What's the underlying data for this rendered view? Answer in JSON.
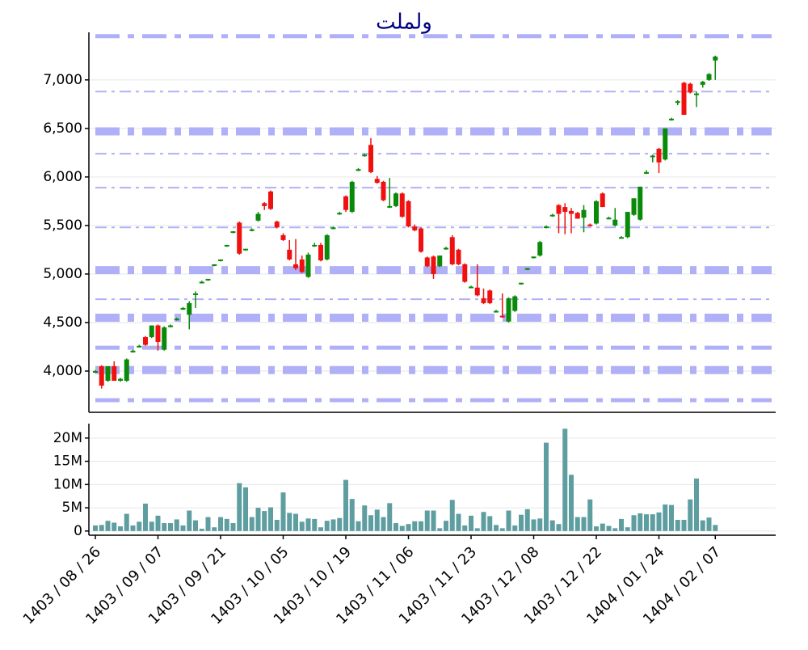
{
  "chart_data": {
    "type": "candlestick",
    "title": "ولملت",
    "categories": [
      "1403 / 08 / 26",
      null,
      null,
      null,
      null,
      null,
      null,
      null,
      null,
      null,
      "1403 / 09 / 07",
      null,
      null,
      null,
      null,
      null,
      null,
      null,
      null,
      null,
      "1403 / 09 / 21",
      null,
      null,
      null,
      null,
      null,
      null,
      null,
      null,
      null,
      "1403 / 10 / 05",
      null,
      null,
      null,
      null,
      null,
      null,
      null,
      null,
      null,
      "1403 / 10 / 19",
      null,
      null,
      null,
      null,
      null,
      null,
      null,
      null,
      null,
      "1403 / 11 / 06",
      null,
      null,
      null,
      null,
      null,
      null,
      null,
      null,
      null,
      "1403 / 11 / 23",
      null,
      null,
      null,
      null,
      null,
      null,
      null,
      null,
      null,
      "1403 / 12 / 08",
      null,
      null,
      null,
      null,
      null,
      null,
      null,
      null,
      null,
      "1403 / 12 / 22",
      null,
      null,
      null,
      null,
      null,
      null,
      null,
      null,
      null,
      "1404 / 01 / 24",
      null,
      null,
      null,
      null,
      null,
      null,
      null,
      null,
      "1404 / 02 / 07"
    ],
    "ohlc": [
      [
        3990,
        4010,
        3980,
        4000
      ],
      [
        4050,
        4060,
        3820,
        3850
      ],
      [
        3900,
        4050,
        3890,
        4050
      ],
      [
        4050,
        4100,
        3900,
        3900
      ],
      [
        3900,
        3930,
        3890,
        3920
      ],
      [
        3900,
        4130,
        3890,
        4120
      ],
      [
        4200,
        4220,
        4190,
        4210
      ],
      [
        4260,
        4270,
        4250,
        4260
      ],
      [
        4350,
        4360,
        4260,
        4270
      ],
      [
        4350,
        4470,
        4340,
        4470
      ],
      [
        4470,
        4480,
        4210,
        4300
      ],
      [
        4220,
        4460,
        4210,
        4450
      ],
      [
        4460,
        4480,
        4450,
        4470
      ],
      [
        4530,
        4550,
        4520,
        4540
      ],
      [
        4640,
        4660,
        4630,
        4650
      ],
      [
        4580,
        4720,
        4430,
        4700
      ],
      [
        4790,
        4820,
        4650,
        4800
      ],
      [
        4920,
        4930,
        4910,
        4920
      ],
      [
        4940,
        4950,
        4930,
        4950
      ],
      [
        5090,
        5100,
        5080,
        5100
      ],
      [
        5140,
        5150,
        5130,
        5150
      ],
      [
        5290,
        5300,
        5280,
        5300
      ],
      [
        5430,
        5440,
        5420,
        5440
      ],
      [
        5530,
        5540,
        5200,
        5210
      ],
      [
        5250,
        5260,
        5240,
        5260
      ],
      [
        5450,
        5470,
        5440,
        5460
      ],
      [
        5550,
        5640,
        5540,
        5620
      ],
      [
        5730,
        5740,
        5660,
        5700
      ],
      [
        5850,
        5860,
        5660,
        5670
      ],
      [
        5540,
        5550,
        5470,
        5480
      ],
      [
        5400,
        5420,
        5340,
        5350
      ],
      [
        5250,
        5350,
        5140,
        5150
      ],
      [
        5100,
        5360,
        5040,
        5060
      ],
      [
        5150,
        5190,
        5010,
        5020
      ],
      [
        4970,
        5220,
        4960,
        5200
      ],
      [
        5290,
        5320,
        5280,
        5300
      ],
      [
        5300,
        5320,
        5130,
        5140
      ],
      [
        5150,
        5410,
        5140,
        5400
      ],
      [
        5470,
        5490,
        5460,
        5480
      ],
      [
        5620,
        5640,
        5610,
        5630
      ],
      [
        5800,
        5810,
        5640,
        5660
      ],
      [
        5640,
        5960,
        5630,
        5950
      ],
      [
        6070,
        6090,
        6060,
        6080
      ],
      [
        6220,
        6240,
        6210,
        6230
      ],
      [
        6330,
        6400,
        6040,
        6050
      ],
      [
        5980,
        6010,
        5930,
        5940
      ],
      [
        5950,
        5960,
        5750,
        5760
      ],
      [
        5690,
        5990,
        5680,
        5700
      ],
      [
        5700,
        5840,
        5690,
        5830
      ],
      [
        5830,
        5840,
        5580,
        5590
      ],
      [
        5750,
        5760,
        5480,
        5490
      ],
      [
        5490,
        5510,
        5440,
        5450
      ],
      [
        5470,
        5480,
        5220,
        5230
      ],
      [
        5170,
        5180,
        5070,
        5080
      ],
      [
        5180,
        5190,
        4950,
        5000
      ],
      [
        5080,
        5190,
        5070,
        5190
      ],
      [
        5260,
        5280,
        5250,
        5270
      ],
      [
        5380,
        5400,
        5090,
        5100
      ],
      [
        5250,
        5260,
        5090,
        5100
      ],
      [
        5100,
        5110,
        4910,
        4920
      ],
      [
        4870,
        4880,
        4860,
        4870
      ],
      [
        4860,
        5100,
        4770,
        4780
      ],
      [
        4750,
        4850,
        4690,
        4700
      ],
      [
        4830,
        4840,
        4690,
        4700
      ],
      [
        4620,
        4630,
        4610,
        4620
      ],
      [
        4570,
        4800,
        4550,
        4560
      ],
      [
        4510,
        4760,
        4500,
        4750
      ],
      [
        4620,
        4780,
        4610,
        4770
      ],
      [
        4900,
        4910,
        4890,
        4910
      ],
      [
        5050,
        5060,
        5040,
        5060
      ],
      [
        5170,
        5180,
        5160,
        5180
      ],
      [
        5190,
        5340,
        5180,
        5330
      ],
      [
        5480,
        5500,
        5470,
        5490
      ],
      [
        5600,
        5620,
        5590,
        5610
      ],
      [
        5710,
        5720,
        5420,
        5620
      ],
      [
        5690,
        5730,
        5410,
        5640
      ],
      [
        5650,
        5680,
        5420,
        5620
      ],
      [
        5630,
        5640,
        5570,
        5570
      ],
      [
        5580,
        5710,
        5430,
        5660
      ],
      [
        5510,
        5520,
        5490,
        5500
      ],
      [
        5520,
        5760,
        5510,
        5750
      ],
      [
        5830,
        5840,
        5690,
        5690
      ],
      [
        5580,
        5590,
        5570,
        5580
      ],
      [
        5500,
        5680,
        5490,
        5560
      ],
      [
        5380,
        5390,
        5370,
        5380
      ],
      [
        5380,
        5640,
        5370,
        5640
      ],
      [
        5610,
        5780,
        5600,
        5780
      ],
      [
        5560,
        5900,
        5550,
        5900
      ],
      [
        6040,
        6070,
        6030,
        6050
      ],
      [
        6210,
        6230,
        6150,
        6220
      ],
      [
        6290,
        6300,
        6040,
        6150
      ],
      [
        6180,
        6500,
        6170,
        6500
      ],
      [
        6590,
        6610,
        6580,
        6600
      ],
      [
        6770,
        6790,
        6740,
        6780
      ],
      [
        6970,
        6980,
        6640,
        6640
      ],
      [
        6960,
        6970,
        6860,
        6870
      ],
      [
        6860,
        6880,
        6720,
        6860
      ],
      [
        6950,
        6990,
        6920,
        6980
      ],
      [
        7000,
        7070,
        6990,
        7060
      ],
      [
        7200,
        7250,
        7000,
        7240
      ]
    ],
    "up_color": "#0a8a0a",
    "down_color": "#f01010",
    "ylim": [
      3575,
      7490
    ],
    "yticks": [
      {
        "value": 4000,
        "label": "4,000"
      },
      {
        "value": 4500,
        "label": "4,500"
      },
      {
        "value": 5000,
        "label": "5,000"
      },
      {
        "value": 5500,
        "label": "5,500"
      },
      {
        "value": 6000,
        "label": "6,000"
      },
      {
        "value": 6500,
        "label": "6,500"
      },
      {
        "value": 7000,
        "label": "7,000"
      }
    ],
    "grid": true,
    "levels": [
      7450,
      6880,
      6470,
      6240,
      5890,
      5480,
      5040,
      4740,
      4550,
      4240,
      4010,
      3700
    ],
    "level_styles": [
      "medium",
      "thin",
      "heavy",
      "thin",
      "thin",
      "thin",
      "heavy",
      "thin",
      "heavy",
      "medium",
      "heavy",
      "medium"
    ],
    "level_color": "#b0b0f8",
    "volume": {
      "values": [
        1.2,
        1.3,
        2.2,
        1.8,
        1,
        3.7,
        1.2,
        2,
        5.9,
        2,
        3.3,
        1.7,
        1.7,
        2.5,
        1.2,
        4.4,
        2.3,
        0.5,
        3,
        0.8,
        3,
        2.6,
        1.7,
        10.3,
        9.4,
        3,
        5,
        4.3,
        5.1,
        2.4,
        8.3,
        3.9,
        3.7,
        2,
        2.7,
        2.6,
        0.8,
        2.2,
        2.5,
        2.8,
        11,
        6.9,
        2.1,
        5.5,
        3.4,
        4.6,
        3,
        6,
        1.7,
        1.1,
        1.5,
        2.1,
        2.1,
        4.4,
        4.4,
        0.6,
        2.2,
        6.7,
        3.7,
        1.2,
        3.3,
        0.6,
        4.1,
        3.2,
        1.3,
        0.6,
        4.4,
        1.2,
        3.5,
        4.7,
        2.5,
        2.7,
        19,
        2.3,
        1.5,
        22,
        12.1,
        3,
        3,
        6.8,
        1,
        1.6,
        1.1,
        0.6,
        2.6,
        0.8,
        3.4,
        3.8,
        3.6,
        3.6,
        4,
        5.7,
        5.6,
        2.4,
        2.4,
        6.8,
        11.3,
        2.3,
        2.9,
        1.3
      ],
      "color": "#5f9ea0",
      "ylim": [
        -0.9,
        23.1
      ],
      "yticks": [
        0,
        {
          "value": 5,
          "label": "5M"
        },
        {
          "value": 10,
          "label": "10M"
        },
        {
          "value": 15,
          "label": "15M"
        },
        {
          "value": 20,
          "label": "20M"
        }
      ]
    }
  }
}
